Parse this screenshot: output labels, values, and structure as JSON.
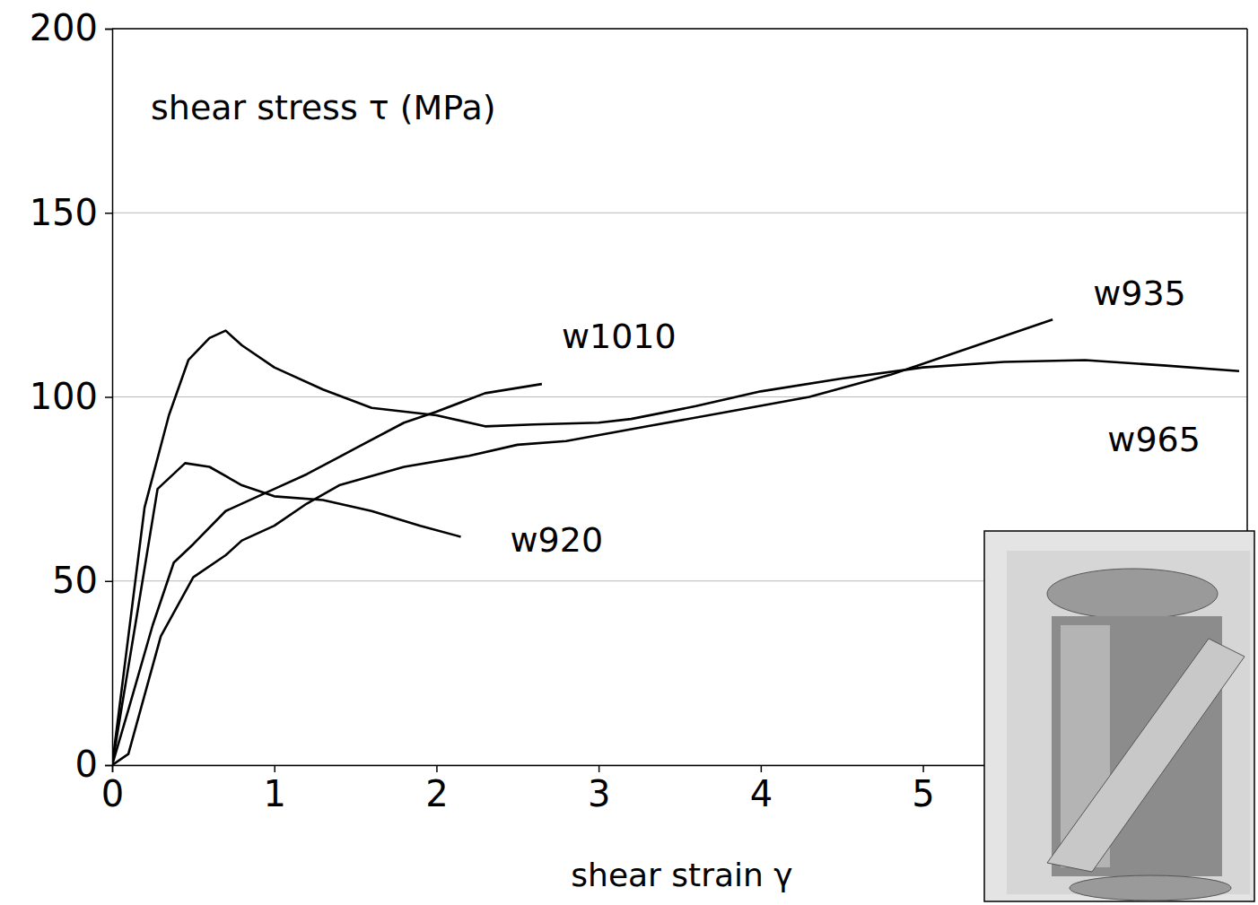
{
  "chart_data": {
    "type": "line",
    "y_label": "shear stress τ (MPa)",
    "x_label": "shear strain γ",
    "xlim": [
      0,
      7
    ],
    "xticks": [
      0,
      1,
      2,
      3,
      4,
      5
    ],
    "ylim": [
      0,
      200
    ],
    "yticks": [
      0,
      50,
      100,
      150,
      200
    ],
    "grid": true,
    "color": "#000000",
    "line_style": "solid",
    "series": [
      {
        "name": "w1010",
        "x": [
          0,
          0.1,
          0.25,
          0.38,
          0.5,
          0.7,
          1.0,
          1.2,
          1.5,
          1.8,
          2.0,
          2.3,
          2.65
        ],
        "values": [
          0,
          15,
          38,
          55,
          60,
          69,
          75,
          79,
          86,
          93,
          96,
          101,
          103.5
        ]
      },
      {
        "name": "w935",
        "x": [
          0,
          0.1,
          0.3,
          0.5,
          0.7,
          0.8,
          1.0,
          1.2,
          1.4,
          1.8,
          2.2,
          2.5,
          2.8,
          3.3,
          3.8,
          4.3,
          4.8,
          5.2,
          5.8
        ],
        "values": [
          0,
          3,
          35,
          51,
          57,
          61,
          65,
          71,
          76,
          81,
          84,
          87,
          88,
          92,
          96,
          100,
          106,
          112,
          121
        ]
      },
      {
        "name": "w965",
        "x": [
          0,
          0.2,
          0.35,
          0.47,
          0.6,
          0.7,
          0.8,
          1.0,
          1.3,
          1.6,
          2.0,
          2.3,
          2.6,
          3.0,
          3.2,
          3.6,
          4.0,
          4.5,
          5.0,
          5.5,
          6.0,
          6.5,
          6.95
        ],
        "values": [
          0,
          70,
          95,
          110,
          116,
          118,
          114,
          108,
          102,
          97,
          95,
          92,
          92.5,
          93,
          94,
          97.5,
          101.5,
          105,
          108,
          109.5,
          110,
          108.5,
          107
        ]
      },
      {
        "name": "w920",
        "x": [
          0,
          0.15,
          0.28,
          0.45,
          0.6,
          0.8,
          1.0,
          1.3,
          1.6,
          1.9,
          2.15
        ],
        "values": [
          0,
          40,
          75,
          82,
          81,
          76,
          73,
          72,
          69,
          65,
          62
        ]
      }
    ]
  }
}
